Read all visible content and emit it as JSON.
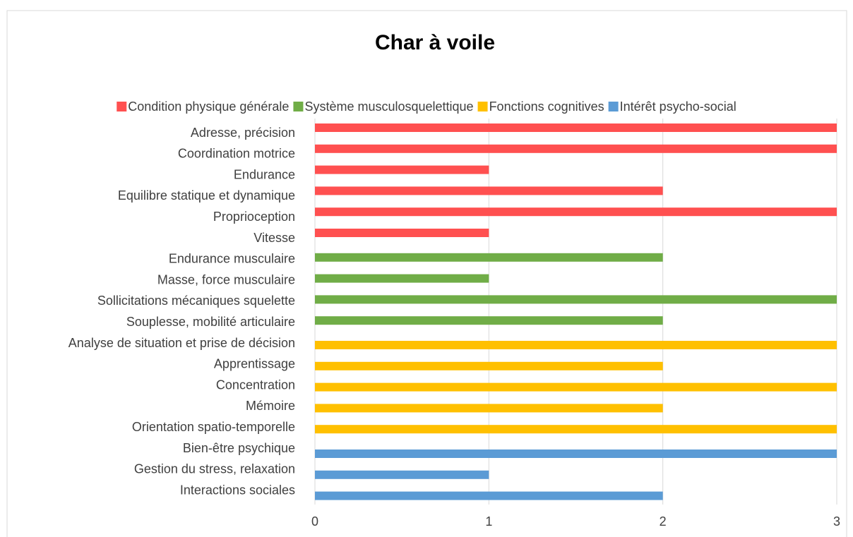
{
  "chart_data": {
    "type": "bar",
    "orientation": "horizontal",
    "title": "Char à voile",
    "categories": [
      "Adresse, précision",
      "Coordination motrice",
      "Endurance",
      "Equilibre statique et dynamique",
      "Proprioception",
      "Vitesse",
      "Endurance musculaire",
      "Masse,  force musculaire",
      "Sollicitations mécaniques squelette",
      "Souplesse, mobilité articulaire",
      "Analyse de situation et prise de décision",
      "Apprentissage",
      "Concentration",
      "Mémoire",
      "Orientation spatio-temporelle",
      "Bien-être psychique",
      "Gestion du stress, relaxation",
      "Interactions sociales"
    ],
    "series": [
      {
        "name": "Condition physique générale",
        "color": "#ff5050",
        "values": [
          3,
          3,
          1,
          2,
          3,
          1,
          null,
          null,
          null,
          null,
          null,
          null,
          null,
          null,
          null,
          null,
          null,
          null
        ]
      },
      {
        "name": "Système musculosquelettique",
        "color": "#70ad47",
        "values": [
          null,
          null,
          null,
          null,
          null,
          null,
          2,
          1,
          3,
          2,
          null,
          null,
          null,
          null,
          null,
          null,
          null,
          null
        ]
      },
      {
        "name": "Fonctions cognitives",
        "color": "#ffc000",
        "values": [
          null,
          null,
          null,
          null,
          null,
          null,
          null,
          null,
          null,
          null,
          3,
          2,
          3,
          2,
          3,
          null,
          null,
          null
        ]
      },
      {
        "name": "Intérêt psycho-social",
        "color": "#5b9bd5",
        "values": [
          null,
          null,
          null,
          null,
          null,
          null,
          null,
          null,
          null,
          null,
          null,
          null,
          null,
          null,
          null,
          3,
          1,
          2
        ]
      }
    ],
    "xlim": [
      0,
      3
    ],
    "xticks": [
      0,
      1,
      2,
      3
    ],
    "grid": true,
    "legend": "top"
  }
}
